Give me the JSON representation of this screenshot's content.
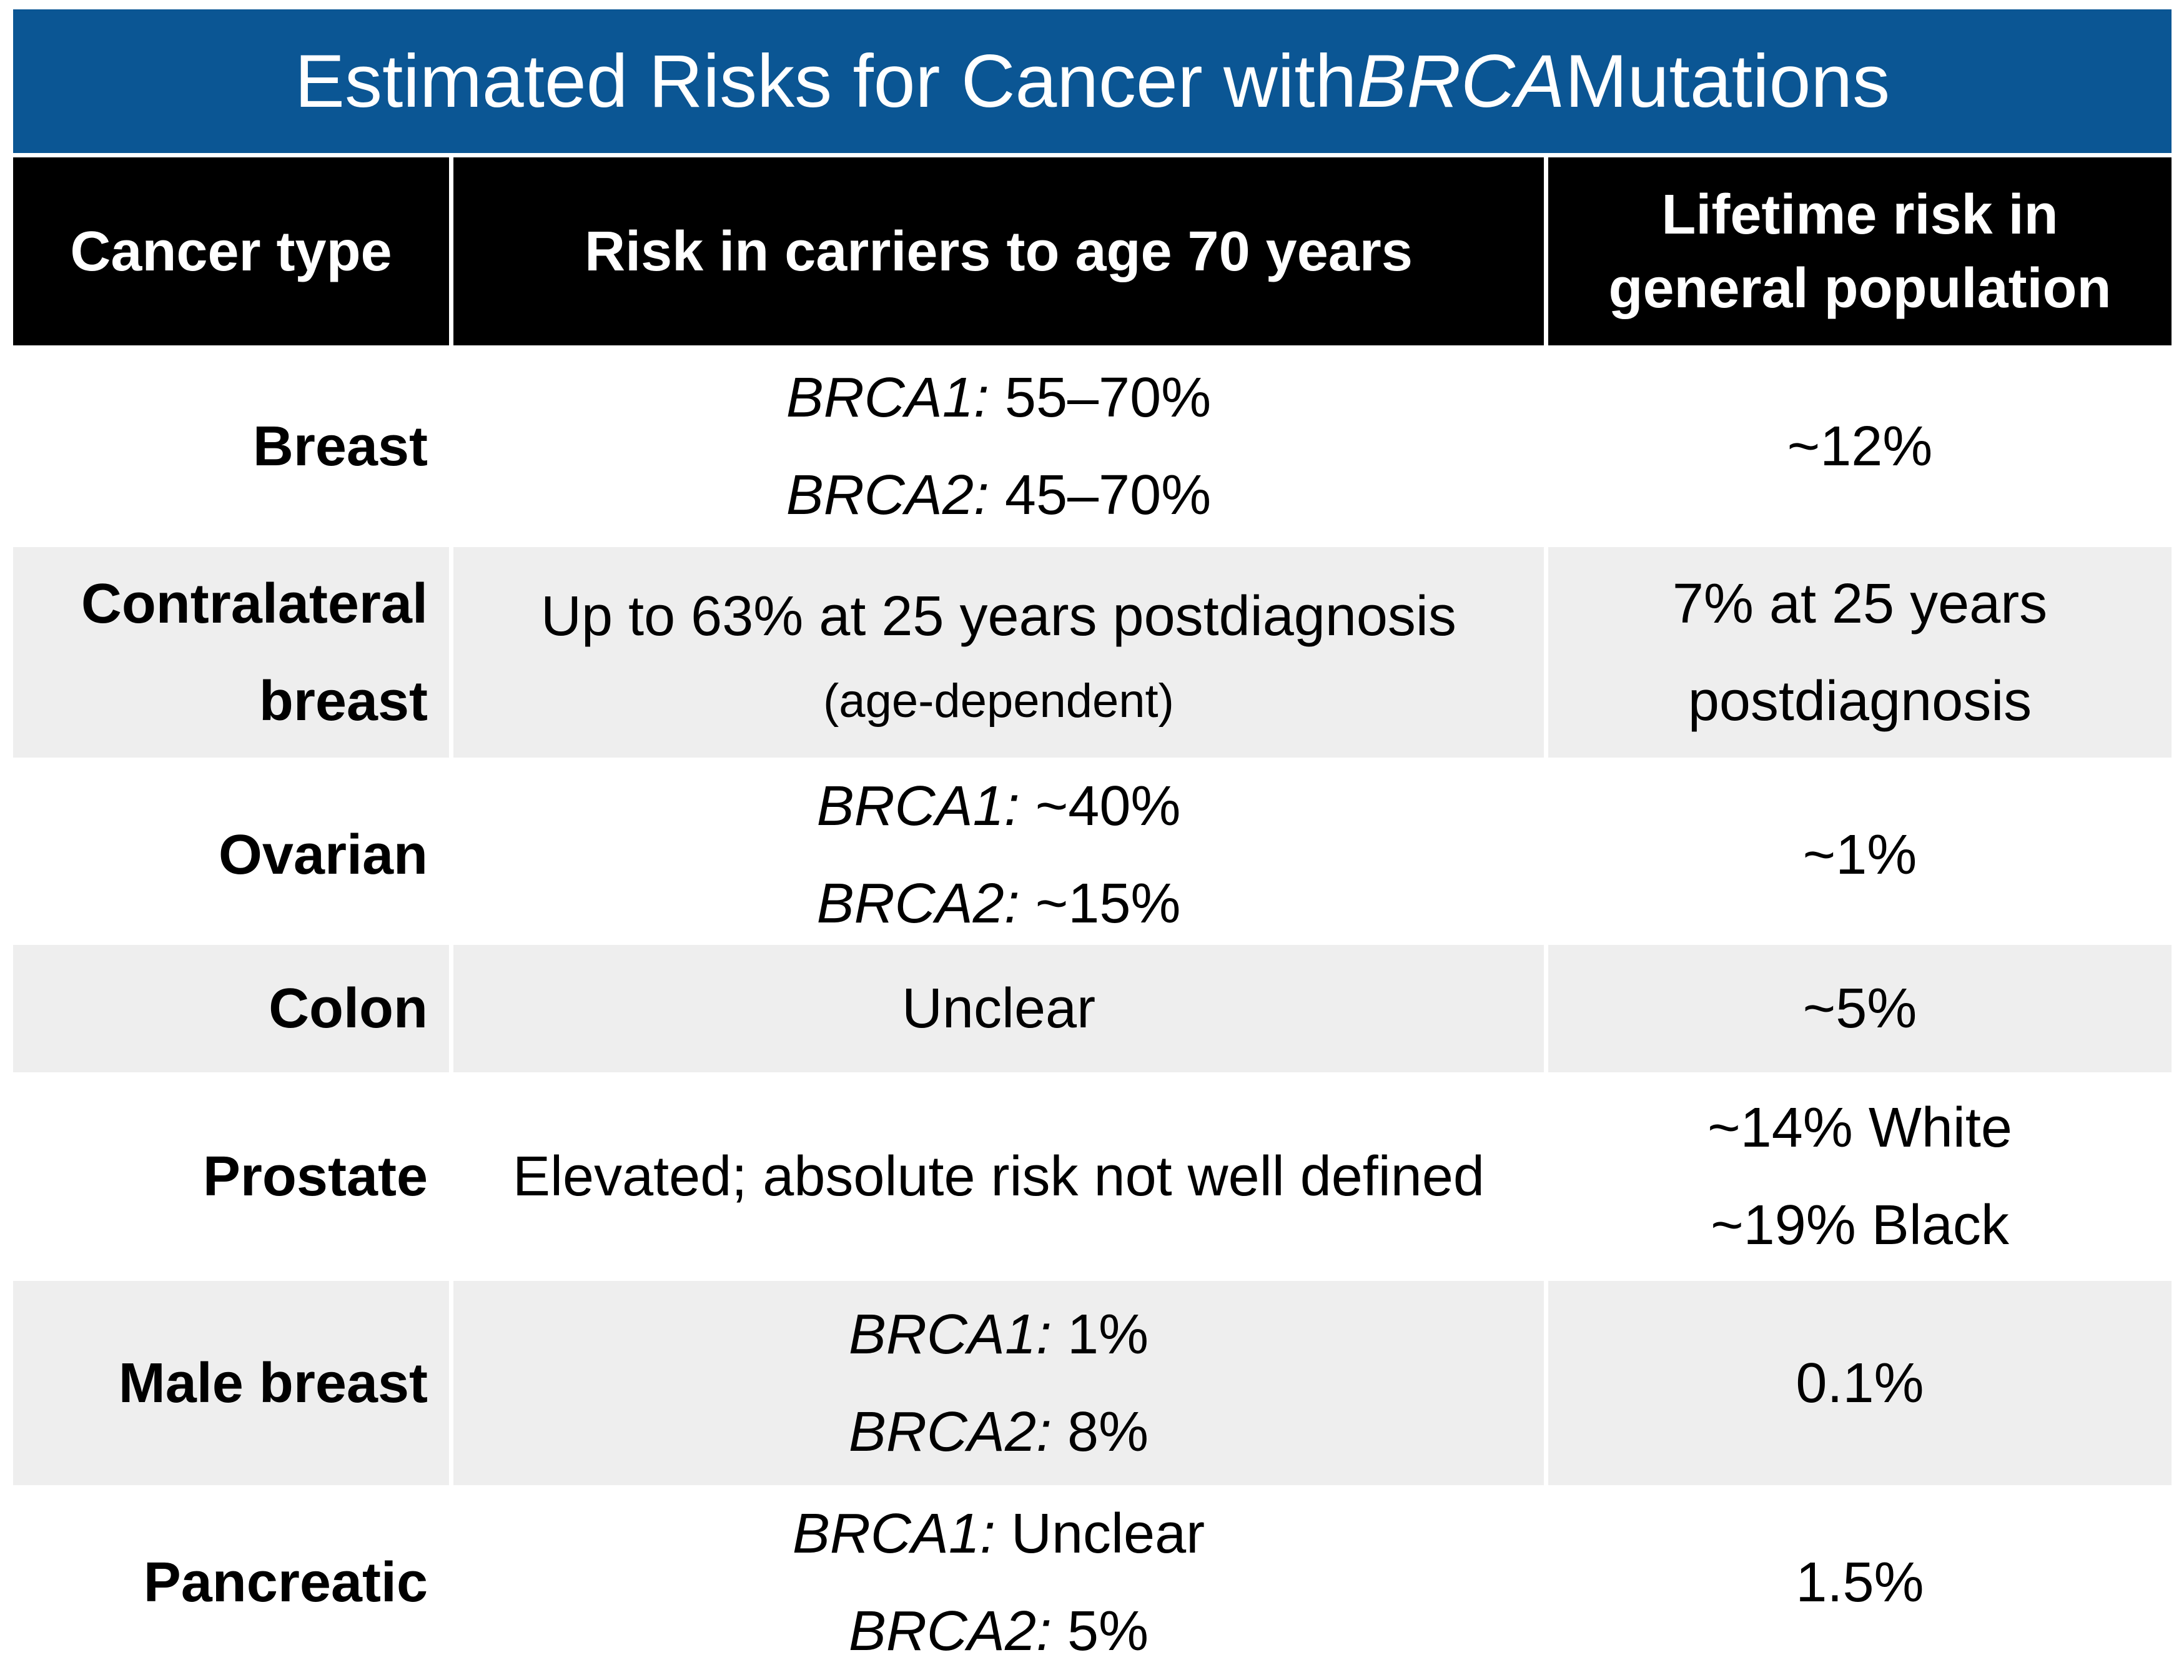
{
  "title": {
    "prefix": "Estimated Risks for Cancer with ",
    "gene": "BRCA",
    "suffix": " Mutations"
  },
  "header": {
    "cancer_type": "Cancer type",
    "carrier_risk": "Risk in carriers to age 70 years",
    "general_population": [
      "Lifetime risk in",
      "general population"
    ]
  },
  "rows": [
    {
      "type": "Breast",
      "risk": [
        {
          "italic": "BRCA1:",
          "text": "55–70%"
        },
        {
          "italic": "BRCA2:",
          "text": "45–70%"
        }
      ],
      "general": [
        "~12%"
      ]
    },
    {
      "type": "Contralateral breast",
      "risk": [
        {
          "text": "Up to 63% at 25 years postdiagnosis"
        },
        {
          "text": "(age-dependent)",
          "small": true
        }
      ],
      "general": [
        "7% at 25 years",
        "postdiagnosis"
      ]
    },
    {
      "type": "Ovarian",
      "risk": [
        {
          "italic": "BRCA1:",
          "text": "~40%"
        },
        {
          "italic": "BRCA2:",
          "text": "~15%"
        }
      ],
      "general": [
        "~1%"
      ]
    },
    {
      "type": "Colon",
      "risk": [
        {
          "text": "Unclear"
        }
      ],
      "general": [
        "~5%"
      ]
    },
    {
      "type": "Prostate",
      "risk": [
        {
          "text": "Elevated; absolute risk not well defined"
        }
      ],
      "general": [
        "~14% White",
        "~19% Black"
      ]
    },
    {
      "type": "Male breast",
      "risk": [
        {
          "italic": "BRCA1:",
          "text": "1%"
        },
        {
          "italic": "BRCA2:",
          "text": "8%"
        }
      ],
      "general": [
        "0.1%"
      ]
    },
    {
      "type": "Pancreatic",
      "risk": [
        {
          "italic": "BRCA1:",
          "text": "Unclear"
        },
        {
          "italic": "BRCA2:",
          "text": "5%"
        }
      ],
      "general": [
        "1.5%"
      ]
    }
  ],
  "colors": {
    "title_bar": "#0b5694",
    "title_text": "#ffffff",
    "header_bg": "#000000",
    "header_text": "#ffffff",
    "row_bg": "#ffffff",
    "row_alt_bg": "#eeeeee",
    "body_text": "#000000"
  }
}
